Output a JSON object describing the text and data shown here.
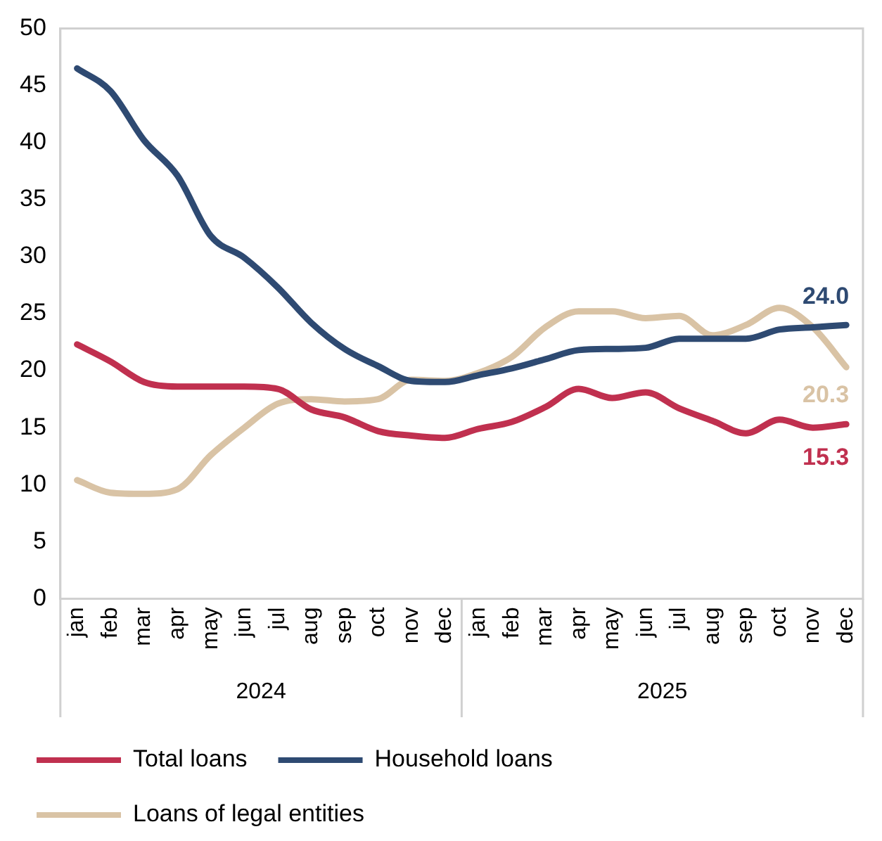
{
  "chart_data": {
    "type": "line",
    "categories": [
      "jan",
      "feb",
      "mar",
      "apr",
      "may",
      "jun",
      "jul",
      "aug",
      "sep",
      "oct",
      "nov",
      "dec",
      "jan",
      "feb",
      "mar",
      "apr",
      "may",
      "jun",
      "jul",
      "aug",
      "sep",
      "oct",
      "nov",
      "dec"
    ],
    "series": [
      {
        "name": "Total loans",
        "color": "#c0304f",
        "values": [
          22.3,
          20.8,
          19.0,
          18.6,
          18.6,
          18.6,
          18.4,
          16.6,
          15.9,
          14.7,
          14.3,
          14.1,
          14.9,
          15.5,
          16.8,
          18.4,
          17.6,
          18.1,
          16.7,
          15.6,
          14.5,
          15.7,
          15.0,
          15.3
        ],
        "value_labels": [
          null,
          null,
          null,
          null,
          null,
          null,
          null,
          null,
          null,
          null,
          null,
          null,
          null,
          null,
          null,
          null,
          null,
          null,
          null,
          null,
          null,
          null,
          null,
          "15.3"
        ]
      },
      {
        "name": "Household loans",
        "color": "#2e4a72",
        "values": [
          46.5,
          44.5,
          40.2,
          37.1,
          31.8,
          29.9,
          27.3,
          24.2,
          21.9,
          20.4,
          19.1,
          19.0,
          19.6,
          20.2,
          21.0,
          21.8,
          21.9,
          22.0,
          22.8,
          22.8,
          22.8,
          23.6,
          23.8,
          24.0
        ],
        "value_labels": [
          null,
          null,
          null,
          null,
          null,
          null,
          null,
          null,
          null,
          null,
          null,
          null,
          null,
          null,
          null,
          null,
          null,
          null,
          null,
          null,
          null,
          null,
          null,
          "24.0"
        ]
      },
      {
        "name": "Loans of legal entities",
        "color": "#d9c3a5",
        "values": [
          10.4,
          9.3,
          9.2,
          9.6,
          12.6,
          15.0,
          17.1,
          17.5,
          17.3,
          17.5,
          19.2,
          19.1,
          19.8,
          21.2,
          23.8,
          25.2,
          25.2,
          24.6,
          24.8,
          23.1,
          24.0,
          25.5,
          23.8,
          20.3
        ],
        "value_labels": [
          null,
          null,
          null,
          null,
          null,
          null,
          null,
          null,
          null,
          null,
          null,
          null,
          null,
          null,
          null,
          null,
          null,
          null,
          null,
          null,
          null,
          null,
          null,
          "20.3"
        ]
      }
    ],
    "annotations": [
      "2024",
      "2025"
    ],
    "ylim": [
      0,
      50
    ],
    "yticks": [
      0,
      5,
      10,
      15,
      20,
      25,
      30,
      35,
      40,
      45,
      50
    ],
    "grid": false,
    "legend": "bottom",
    "marker": "none",
    "line_style": "solid"
  }
}
